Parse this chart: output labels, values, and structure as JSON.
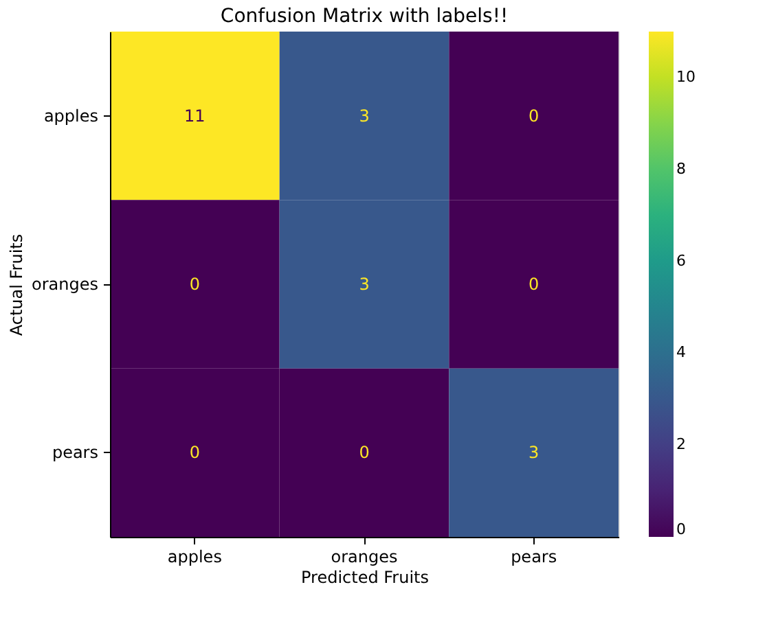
{
  "chart_data": {
    "type": "heatmap",
    "title": "Confusion Matrix with labels!!",
    "xlabel": "Predicted Fruits",
    "ylabel": "Actual Fruits",
    "categories": [
      "apples",
      "oranges",
      "pears"
    ],
    "y_categories": [
      "apples",
      "oranges",
      "pears"
    ],
    "cells": [
      [
        11,
        3,
        0
      ],
      [
        0,
        3,
        0
      ],
      [
        0,
        0,
        3
      ]
    ],
    "clim": [
      0,
      11
    ],
    "cticks": [
      0,
      2,
      4,
      6,
      8,
      10
    ],
    "data_labels": true,
    "grid": false
  }
}
